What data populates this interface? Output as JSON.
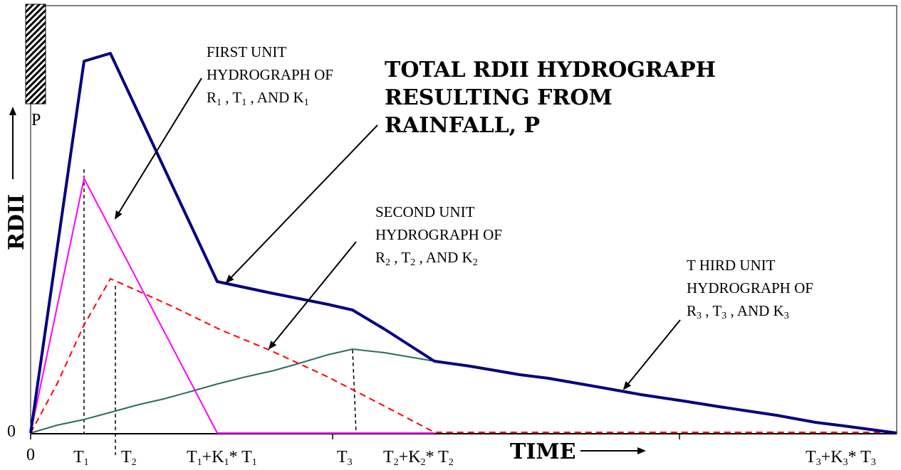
{
  "axes": {
    "y_label": "RDII",
    "x_label": "TIME",
    "x_origin": "0",
    "y_origin": "0"
  },
  "rain": {
    "label": "P"
  },
  "x_ticks": {
    "t1": {
      "main": "T",
      "sub": "1"
    },
    "t2": {
      "main": "T",
      "sub": "2"
    },
    "t1k1": {
      "a": "T",
      "a_sub": "1",
      "b": "+K",
      "b_sub": "1",
      "c": "* T",
      "c_sub": "1"
    },
    "t3": {
      "main": "T",
      "sub": "3"
    },
    "t2k2": {
      "a": "T",
      "a_sub": "2",
      "b": "+K",
      "b_sub": "2",
      "c": "* T",
      "c_sub": "2"
    },
    "t3k3": {
      "a": "T",
      "a_sub": "3",
      "b": "+K",
      "b_sub": "3",
      "c": "* T",
      "c_sub": "3"
    }
  },
  "annotations": {
    "total": {
      "line1": "TOTAL RDII HYDROGRAPH",
      "line2": "RESULTING FROM",
      "line3": "RAINFALL, P"
    },
    "first": {
      "line1": "FIRST  UNIT",
      "line2": "HYDROGRAPH OF",
      "r": "R",
      "r_sub": "1",
      "t": " , T",
      "t_sub": "1",
      "k": " ,  AND K",
      "k_sub": "1"
    },
    "second": {
      "line1": "SECOND UNIT",
      "line2": "HYDROGRAPH OF",
      "r": "R",
      "r_sub": "2",
      "t": " , T",
      "t_sub": "2",
      "k": " ,  AND K",
      "k_sub": "2"
    },
    "third": {
      "line1": "T HIRD UNIT",
      "line2": "HYDROGRAPH OF",
      "r": "R",
      "r_sub": "3",
      "t": " , T",
      "t_sub": "3",
      "k": " ,  AND K",
      "k_sub": "3"
    }
  },
  "colors": {
    "total": "#000080",
    "first": "#ff00ff",
    "second": "#ff0000",
    "third": "#2f6b5f",
    "axis": "#000000"
  },
  "chart_data": {
    "type": "line",
    "title": "",
    "xlabel": "TIME",
    "ylabel": "RDII",
    "series": [],
    "x_tick_labels": [
      "0",
      "T1",
      "T2",
      "T1+K1* T1",
      "T3",
      "T2+K2* T2",
      "T3+K3* T3"
    ],
    "y_tick_labels": [
      "0"
    ]
  }
}
